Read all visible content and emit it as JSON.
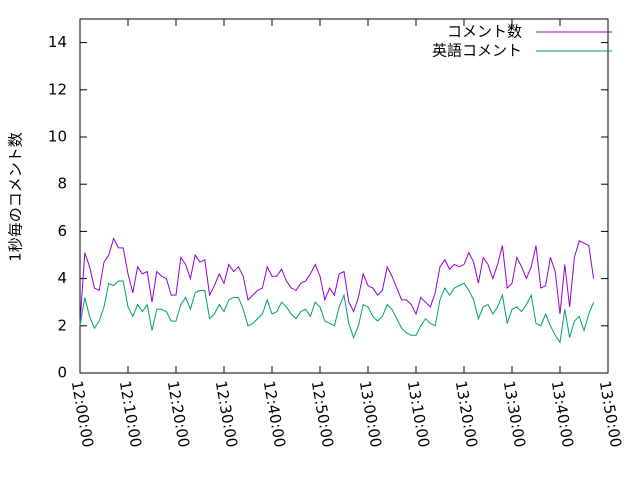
{
  "chart_data": {
    "type": "line",
    "y_label": "1秒毎のコメント数",
    "x": [
      "12:00:00",
      "12:01:00",
      "12:02:00",
      "12:03:00",
      "12:04:00",
      "12:05:00",
      "12:06:00",
      "12:07:00",
      "12:08:00",
      "12:09:00",
      "12:10:00",
      "12:11:00",
      "12:12:00",
      "12:13:00",
      "12:14:00",
      "12:15:00",
      "12:16:00",
      "12:17:00",
      "12:18:00",
      "12:19:00",
      "12:20:00",
      "12:21:00",
      "12:22:00",
      "12:23:00",
      "12:24:00",
      "12:25:00",
      "12:26:00",
      "12:27:00",
      "12:28:00",
      "12:29:00",
      "12:30:00",
      "12:31:00",
      "12:32:00",
      "12:33:00",
      "12:34:00",
      "12:35:00",
      "12:36:00",
      "12:37:00",
      "12:38:00",
      "12:39:00",
      "12:40:00",
      "12:41:00",
      "12:42:00",
      "12:43:00",
      "12:44:00",
      "12:45:00",
      "12:46:00",
      "12:47:00",
      "12:48:00",
      "12:49:00",
      "12:50:00",
      "12:51:00",
      "12:52:00",
      "12:53:00",
      "12:54:00",
      "12:55:00",
      "12:56:00",
      "12:57:00",
      "12:58:00",
      "12:59:00",
      "13:00:00",
      "13:01:00",
      "13:02:00",
      "13:03:00",
      "13:04:00",
      "13:05:00",
      "13:06:00",
      "13:07:00",
      "13:08:00",
      "13:09:00",
      "13:10:00",
      "13:11:00",
      "13:12:00",
      "13:13:00",
      "13:14:00",
      "13:15:00",
      "13:16:00",
      "13:17:00",
      "13:18:00",
      "13:19:00",
      "13:20:00",
      "13:21:00",
      "13:22:00",
      "13:23:00",
      "13:24:00",
      "13:25:00",
      "13:26:00",
      "13:27:00",
      "13:28:00",
      "13:29:00",
      "13:30:00",
      "13:31:00",
      "13:32:00",
      "13:33:00",
      "13:34:00",
      "13:35:00",
      "13:36:00",
      "13:37:00",
      "13:38:00",
      "13:39:00",
      "13:40:00",
      "13:41:00",
      "13:42:00",
      "13:43:00",
      "13:44:00",
      "13:45:00",
      "13:46:00",
      "13:47:00"
    ],
    "series": [
      {
        "name": "コメント数",
        "color": "#9400d3",
        "values": [
          2.1,
          5.1,
          4.5,
          3.6,
          3.5,
          4.7,
          5.0,
          5.7,
          5.3,
          5.3,
          4.2,
          3.4,
          4.5,
          4.2,
          4.3,
          3.0,
          4.3,
          4.1,
          4.0,
          3.3,
          3.3,
          4.9,
          4.6,
          4.0,
          5.0,
          4.7,
          4.8,
          3.3,
          3.7,
          4.2,
          3.8,
          4.6,
          4.3,
          4.5,
          4.1,
          3.1,
          3.3,
          3.5,
          3.6,
          4.5,
          4.1,
          4.1,
          4.4,
          3.9,
          3.6,
          3.5,
          3.8,
          3.9,
          4.2,
          4.6,
          4.1,
          3.1,
          3.6,
          3.3,
          4.2,
          4.3,
          3.0,
          2.6,
          3.2,
          4.2,
          3.7,
          3.6,
          3.3,
          3.5,
          4.5,
          4.1,
          3.6,
          3.1,
          3.1,
          2.9,
          2.5,
          3.2,
          3.0,
          2.8,
          3.4,
          4.5,
          4.8,
          4.4,
          4.6,
          4.5,
          4.6,
          5.1,
          4.7,
          3.8,
          4.9,
          4.6,
          4.0,
          4.6,
          5.4,
          3.6,
          3.8,
          4.9,
          4.5,
          4.0,
          4.5,
          5.4,
          3.6,
          3.7,
          4.9,
          4.3,
          2.5,
          4.6,
          2.8,
          4.9,
          5.6,
          5.5,
          5.4,
          4.0
        ]
      },
      {
        "name": "英語コメント",
        "color": "#009e73",
        "values": [
          2.0,
          3.2,
          2.4,
          1.9,
          2.2,
          2.8,
          3.8,
          3.7,
          3.9,
          3.9,
          2.8,
          2.4,
          2.9,
          2.6,
          2.9,
          1.8,
          2.7,
          2.7,
          2.6,
          2.2,
          2.2,
          2.9,
          3.2,
          2.7,
          3.4,
          3.5,
          3.5,
          2.3,
          2.5,
          2.9,
          2.6,
          3.1,
          3.2,
          3.2,
          2.7,
          2.0,
          2.1,
          2.3,
          2.5,
          3.1,
          2.5,
          2.6,
          3.0,
          2.8,
          2.5,
          2.3,
          2.6,
          2.7,
          2.4,
          3.0,
          2.8,
          2.2,
          2.1,
          2.0,
          2.8,
          3.3,
          2.1,
          1.5,
          2.0,
          2.9,
          2.8,
          2.4,
          2.2,
          2.4,
          2.9,
          2.7,
          2.3,
          1.9,
          1.7,
          1.6,
          1.6,
          2.0,
          2.3,
          2.1,
          2.0,
          3.1,
          3.6,
          3.3,
          3.6,
          3.7,
          3.8,
          3.5,
          3.1,
          2.3,
          2.8,
          2.9,
          2.5,
          2.8,
          3.3,
          2.1,
          2.7,
          2.8,
          2.6,
          2.9,
          3.3,
          2.1,
          2.0,
          2.5,
          2.0,
          1.6,
          1.3,
          2.7,
          1.5,
          2.2,
          2.4,
          1.8,
          2.5,
          3.0
        ]
      }
    ],
    "xlim": [
      "12:00:00",
      "13:50:00"
    ],
    "xticks": [
      "12:00:00",
      "12:10:00",
      "12:20:00",
      "12:30:00",
      "12:40:00",
      "12:50:00",
      "13:00:00",
      "13:10:00",
      "13:20:00",
      "13:30:00",
      "13:40:00",
      "13:50:00"
    ],
    "ylim": [
      0,
      15
    ],
    "yticks": [
      0,
      2,
      4,
      6,
      8,
      10,
      12,
      14
    ],
    "legend": "top-right"
  }
}
